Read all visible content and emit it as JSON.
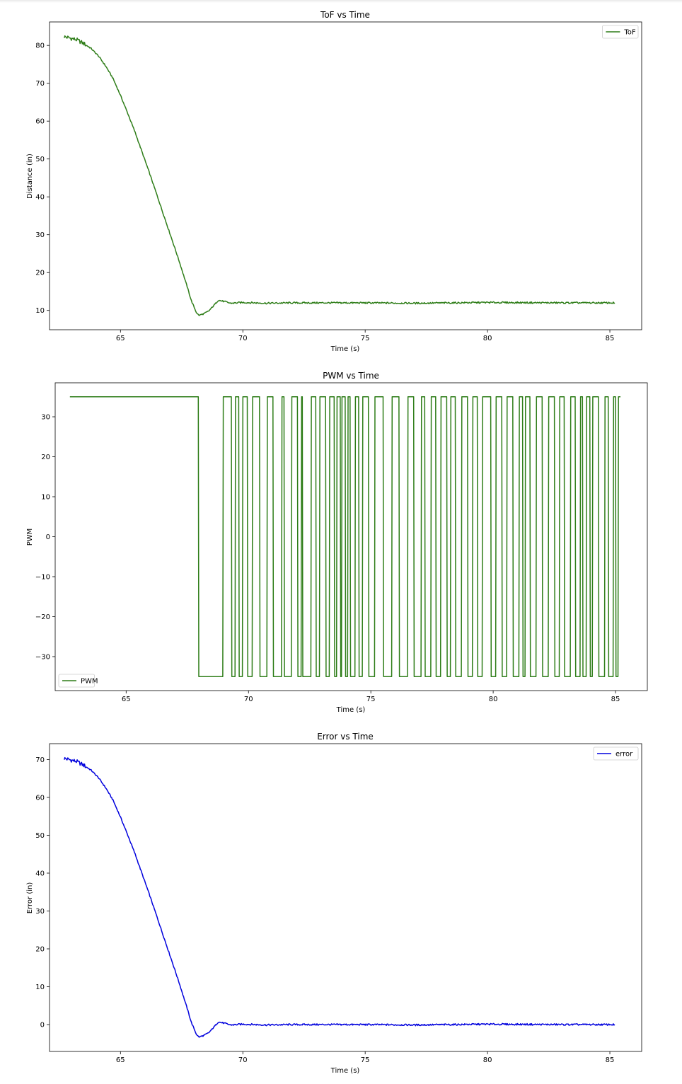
{
  "chart_data": [
    {
      "type": "line",
      "title": "ToF vs Time",
      "xlabel": "Time (s)",
      "ylabel": "Distance (in)",
      "xlim": [
        62.1,
        86.3
      ],
      "ylim": [
        4.9,
        86.2
      ],
      "xticks": [
        65,
        70,
        75,
        80,
        85
      ],
      "yticks": [
        10,
        20,
        30,
        40,
        50,
        60,
        70,
        80
      ],
      "legend_position": "upper right",
      "series": [
        {
          "name": "ToF",
          "color": "#2e7d18",
          "kind": "smooth",
          "points": [
            [
              62.7,
              82.3
            ],
            [
              62.9,
              82.0
            ],
            [
              63.2,
              81.5
            ],
            [
              63.5,
              80.5
            ],
            [
              63.8,
              79.2
            ],
            [
              64.1,
              77.2
            ],
            [
              64.4,
              74.5
            ],
            [
              64.7,
              71.2
            ],
            [
              65.0,
              66.8
            ],
            [
              65.3,
              62.0
            ],
            [
              65.6,
              57.0
            ],
            [
              65.9,
              51.5
            ],
            [
              66.2,
              46.0
            ],
            [
              66.5,
              40.3
            ],
            [
              66.8,
              34.5
            ],
            [
              67.1,
              28.8
            ],
            [
              67.4,
              23.0
            ],
            [
              67.7,
              16.8
            ],
            [
              67.9,
              12.5
            ],
            [
              68.1,
              9.5
            ],
            [
              68.2,
              8.7
            ],
            [
              68.4,
              9.1
            ],
            [
              68.6,
              9.8
            ],
            [
              68.8,
              11.2
            ],
            [
              69.0,
              12.7
            ],
            [
              69.2,
              12.4
            ],
            [
              69.5,
              11.9
            ],
            [
              70.0,
              12.1
            ],
            [
              71.0,
              11.9
            ],
            [
              72.0,
              12.0
            ],
            [
              73.0,
              12.0
            ],
            [
              75.0,
              12.0
            ],
            [
              77.0,
              11.9
            ],
            [
              80.0,
              12.1
            ],
            [
              83.0,
              12.0
            ],
            [
              85.2,
              12.0
            ]
          ]
        }
      ]
    },
    {
      "type": "line",
      "title": "PWM vs Time",
      "xlabel": "Time (s)",
      "ylabel": "PWM",
      "xlim": [
        62.1,
        86.3
      ],
      "ylim": [
        -38.5,
        38.5
      ],
      "xticks": [
        65,
        70,
        75,
        80,
        85
      ],
      "yticks": [
        -30,
        -20,
        -10,
        0,
        10,
        20,
        30
      ],
      "legend_position": "lower left",
      "series": [
        {
          "name": "PWM",
          "color": "#2e7d18",
          "kind": "step",
          "high": 35,
          "low": -35,
          "start": 62.7,
          "end": 85.2,
          "toggle_times": [
            67.95,
            68.95,
            69.3,
            69.45,
            69.6,
            69.75,
            69.95,
            70.15,
            70.45,
            70.75,
            71.0,
            71.35,
            71.45,
            71.75,
            72.0,
            72.15,
            72.2,
            72.55,
            72.75,
            72.9,
            73.15,
            73.3,
            73.5,
            73.6,
            73.75,
            73.8,
            73.95,
            74.05,
            74.15,
            74.35,
            74.5,
            74.65,
            74.9,
            75.15,
            75.5,
            75.85,
            76.15,
            76.5,
            76.75,
            77.05,
            77.2,
            77.45,
            77.65,
            77.85,
            78.1,
            78.25,
            78.45,
            78.7,
            78.95,
            79.15,
            79.35,
            79.55,
            79.9,
            80.1,
            80.35,
            80.55,
            80.8,
            81.05,
            81.2,
            81.3,
            81.5,
            81.75,
            82.0,
            82.25,
            82.5,
            82.7,
            82.9,
            83.15,
            83.35,
            83.55,
            83.65,
            83.8,
            83.95,
            84.05,
            84.3,
            84.55,
            84.7,
            84.9,
            85.0,
            85.1
          ]
        }
      ]
    },
    {
      "type": "line",
      "title": "Error vs Time",
      "xlabel": "Time (s)",
      "ylabel": "Error (in)",
      "xlim": [
        62.1,
        86.3
      ],
      "ylim": [
        -7.1,
        74.2
      ],
      "xticks": [
        65,
        70,
        75,
        80,
        85
      ],
      "yticks": [
        0,
        10,
        20,
        30,
        40,
        50,
        60,
        70
      ],
      "legend_position": "upper right",
      "series": [
        {
          "name": "error",
          "color": "#0000dd",
          "kind": "smooth",
          "points": [
            [
              62.7,
              70.3
            ],
            [
              62.9,
              70.0
            ],
            [
              63.2,
              69.5
            ],
            [
              63.5,
              68.5
            ],
            [
              63.8,
              67.2
            ],
            [
              64.1,
              65.2
            ],
            [
              64.4,
              62.5
            ],
            [
              64.7,
              59.2
            ],
            [
              65.0,
              54.8
            ],
            [
              65.3,
              50.0
            ],
            [
              65.6,
              45.0
            ],
            [
              65.9,
              39.5
            ],
            [
              66.2,
              34.0
            ],
            [
              66.5,
              28.3
            ],
            [
              66.8,
              22.5
            ],
            [
              67.1,
              16.8
            ],
            [
              67.4,
              11.0
            ],
            [
              67.7,
              4.8
            ],
            [
              67.9,
              0.5
            ],
            [
              68.1,
              -2.5
            ],
            [
              68.2,
              -3.3
            ],
            [
              68.4,
              -2.9
            ],
            [
              68.6,
              -2.2
            ],
            [
              68.8,
              -0.8
            ],
            [
              69.0,
              0.7
            ],
            [
              69.2,
              0.4
            ],
            [
              69.5,
              -0.1
            ],
            [
              70.0,
              0.1
            ],
            [
              71.0,
              -0.1
            ],
            [
              72.0,
              0.0
            ],
            [
              73.0,
              0.0
            ],
            [
              75.0,
              0.0
            ],
            [
              77.0,
              -0.1
            ],
            [
              80.0,
              0.1
            ],
            [
              83.0,
              0.0
            ],
            [
              85.2,
              0.0
            ]
          ]
        }
      ]
    }
  ]
}
